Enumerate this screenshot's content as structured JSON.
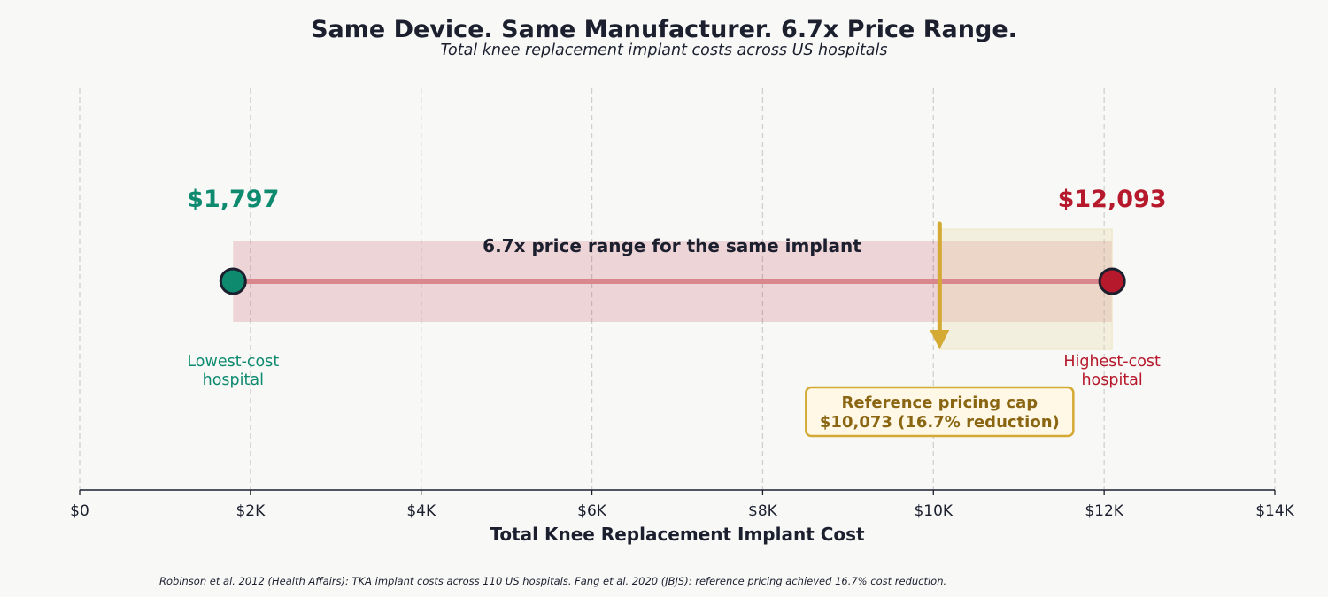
{
  "chart_data": {
    "type": "range",
    "title": "Same Device. Same Manufacturer. 6.7x Price Range.",
    "subtitle": "Total knee replacement implant costs across US hospitals",
    "xlabel": "Total Knee Replacement Implant Cost",
    "xlim": [
      0,
      14000
    ],
    "xticks": [
      0,
      2000,
      4000,
      6000,
      8000,
      10000,
      12000,
      14000
    ],
    "xtick_labels": [
      "$0",
      "$2K",
      "$4K",
      "$6K",
      "$8K",
      "$10K",
      "$12K",
      "$14K"
    ],
    "grid": "vertical dashed",
    "low": {
      "value": 1797,
      "value_label": "$1,797",
      "label_line1": "Lowest-cost",
      "label_line2": "hospital",
      "color": "#0e8a6f"
    },
    "high": {
      "value": 12093,
      "value_label": "$12,093",
      "label_line1": "Highest-cost",
      "label_line2": "hospital",
      "color": "#b5192b"
    },
    "range_label": "6.7x price range for the same implant",
    "cap": {
      "value": 10073,
      "line1": "Reference pricing cap",
      "line2": "$10,073  (16.7% reduction)",
      "color": "#d4aa35",
      "text_color": "#8a6512"
    },
    "footnote": "Robinson et al. 2012 (Health Affairs): TKA implant costs across 110 US hospitals. Fang et al. 2020 (JBJS): reference pricing achieved 16.7% cost reduction."
  }
}
